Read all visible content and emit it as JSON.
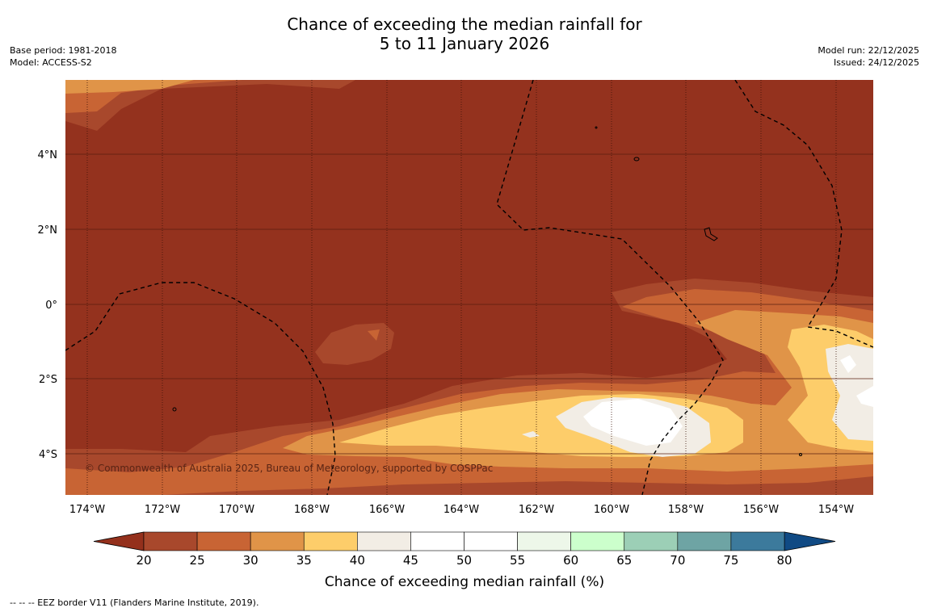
{
  "title_line1": "Chance of exceeding the median rainfall for",
  "title_line2": "5 to 11 January 2026",
  "base_period": "Base period: 1981-2018",
  "model": "Model: ACCESS-S2",
  "model_run": "Model run: 22/12/2025",
  "issued": "Issued: 24/12/2025",
  "copyright": "© Commonwealth of Australia 2025, Bureau of Meteorology, supported by COSPPac",
  "lon_labels": [
    "174°W",
    "172°W",
    "170°W",
    "168°W",
    "166°W",
    "164°W",
    "162°W",
    "160°W",
    "158°W",
    "156°W",
    "154°W"
  ],
  "lat_labels": [
    "4°N",
    "2°N",
    "0°",
    "2°S",
    "4°S"
  ],
  "colorbar": {
    "label": "Chance of exceeding median rainfall (%)",
    "ticks": [
      "20",
      "25",
      "30",
      "35",
      "40",
      "45",
      "50",
      "55",
      "60",
      "65",
      "70",
      "75",
      "80"
    ],
    "colors": [
      "#a8482c",
      "#c86434",
      "#e09448",
      "#fdcd6a",
      "#f2ede5",
      "#ffffff",
      "#ffffff",
      "#edf7e9",
      "#ccffcc",
      "#9ccfb6",
      "#6ea4a4",
      "#3c7a9c"
    ],
    "low_color": "#94301c",
    "high_color": "#104a84"
  },
  "footer": "--  --  -- EEZ border V11 (Flanders Marine Institute, 2019).",
  "map_colors": {
    "base": "#94321e",
    "c25": "#a8482c",
    "c30": "#c86434",
    "c35": "#e09448",
    "c40": "#fdcd6a",
    "c45": "#f2ede5",
    "c50": "#ffffff"
  }
}
